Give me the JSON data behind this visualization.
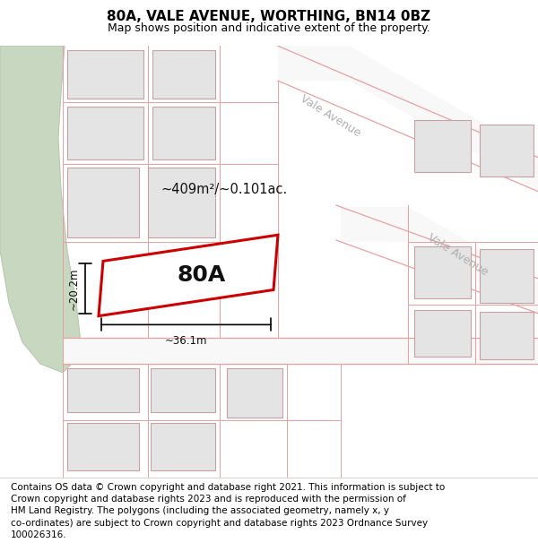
{
  "title": "80A, VALE AVENUE, WORTHING, BN14 0BZ",
  "subtitle": "Map shows position and indicative extent of the property.",
  "footer": "Contains OS data © Crown copyright and database right 2021. This information is subject to\nCrown copyright and database rights 2023 and is reproduced with the permission of\nHM Land Registry. The polygons (including the associated geometry, namely x, y\nco-ordinates) are subject to Crown copyright and database rights 2023 Ordnance Survey\n100026316.",
  "background_color": "#ffffff",
  "map_bg": "#f0f0f0",
  "green_area_color": "#c8d8c0",
  "green_edge_color": "#b8c8b0",
  "road_fill": "#f8f8f8",
  "building_fill": "#e4e4e4",
  "building_edge": "#c8a0a0",
  "road_line_color": "#e8a0a0",
  "highlight_color": "#cc0000",
  "highlight_fill": "#ffffff",
  "label_80A": "80A",
  "area_label": "~409m²/~0.101ac.",
  "width_label": "~36.1m",
  "height_label": "~20.2m",
  "street_name_1": "Vale Avenue",
  "street_name_2": "Vale Avenue",
  "title_fontsize": 11,
  "subtitle_fontsize": 9,
  "footer_fontsize": 7.5
}
